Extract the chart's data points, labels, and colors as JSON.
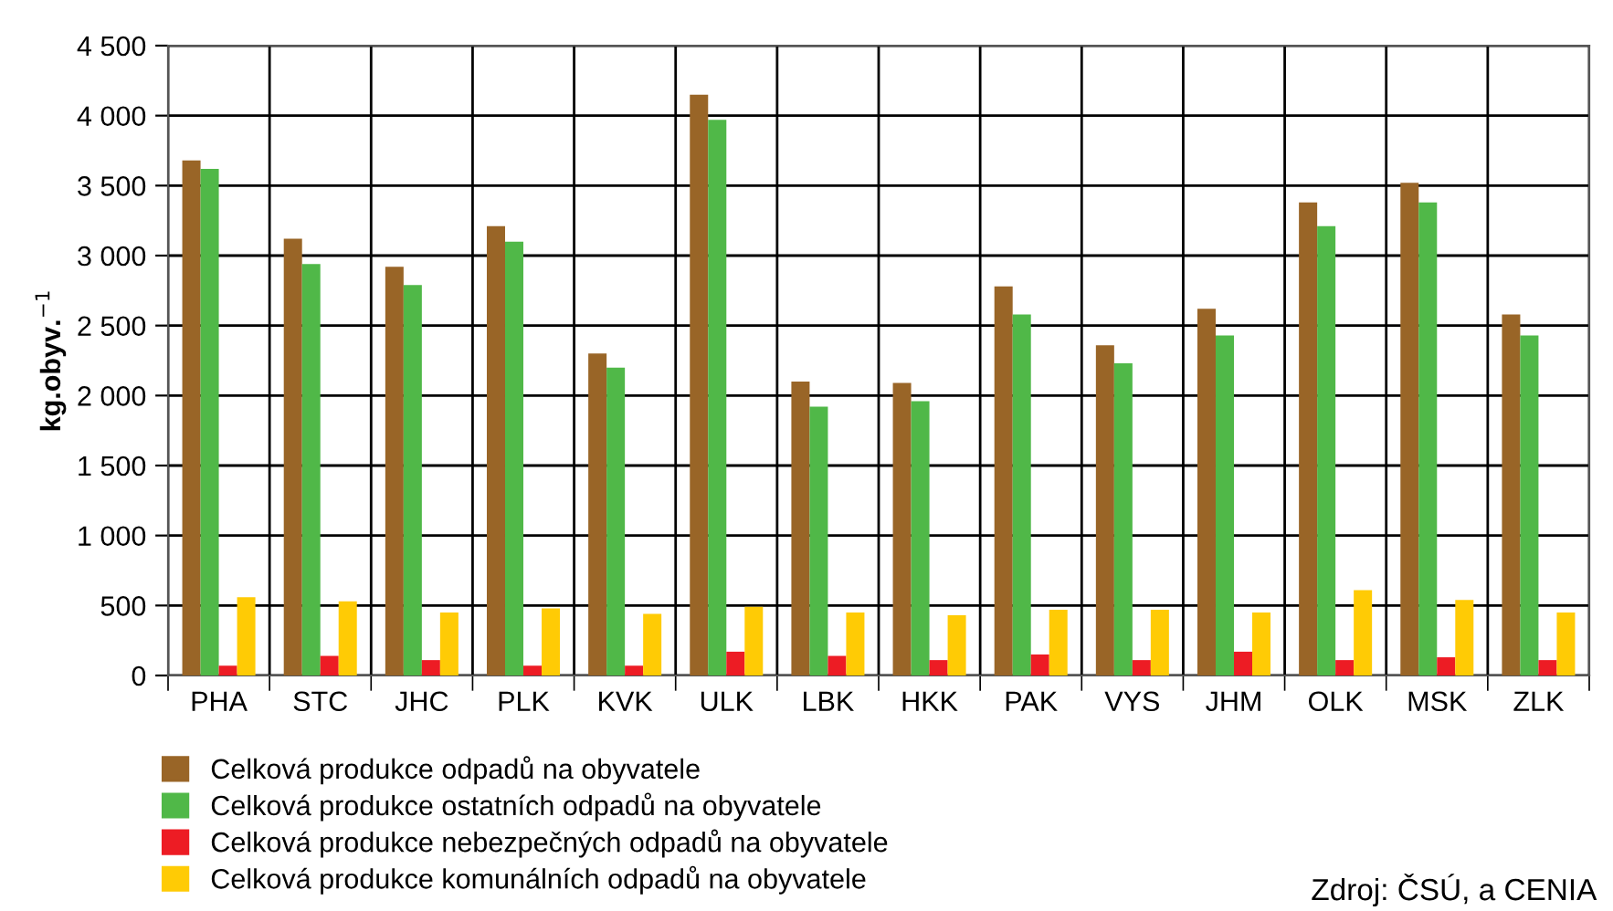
{
  "chart_data": {
    "type": "bar",
    "ylabel": "kg.obyv.$^{−1}$",
    "categories": [
      "PHA",
      "STC",
      "JHC",
      "PLK",
      "KVK",
      "ULK",
      "LBK",
      "HKK",
      "PAK",
      "VYS",
      "JHM",
      "OLK",
      "MSK",
      "ZLK"
    ],
    "series": [
      {
        "name": "Celková produkce odpadů na obyvatele",
        "color": "#996527",
        "values": [
          3680,
          3120,
          2920,
          3210,
          2300,
          4150,
          2100,
          2090,
          2780,
          2360,
          2620,
          3380,
          3520,
          2580
        ]
      },
      {
        "name": "Celková produkce ostatních odpadů na obyvatele",
        "color": "#50b848",
        "values": [
          3620,
          2940,
          2790,
          3100,
          2200,
          3970,
          1920,
          1960,
          2580,
          2230,
          2430,
          3210,
          3380,
          2430
        ]
      },
      {
        "name": "Celková produkce nebezpečných odpadů na obyvatele",
        "color": "#ed1c24",
        "values": [
          70,
          140,
          110,
          70,
          70,
          170,
          140,
          110,
          150,
          110,
          170,
          110,
          130,
          110
        ]
      },
      {
        "name": "Celková produkce komunálních odpadů na obyvatele",
        "color": "#ffcb05",
        "values": [
          560,
          530,
          450,
          480,
          440,
          490,
          450,
          430,
          470,
          470,
          450,
          610,
          540,
          450
        ]
      }
    ],
    "ylim": [
      0,
      4500
    ],
    "yticks": [
      0,
      500,
      {
        "value": 1000,
        "label": "1 000"
      },
      {
        "value": 1500,
        "label": "1 500"
      },
      {
        "value": 2000,
        "label": "2 000"
      },
      {
        "value": 2500,
        "label": "2 500"
      },
      {
        "value": 3000,
        "label": "3 000"
      },
      {
        "value": 3500,
        "label": "3 500"
      },
      {
        "value": 4000,
        "label": "4 000"
      },
      {
        "value": 4500,
        "label": "4 500"
      }
    ],
    "grid": true,
    "legend": "bottom left",
    "annotations": [
      "Zdroj: ČSÚ, a CENIA"
    ]
  }
}
